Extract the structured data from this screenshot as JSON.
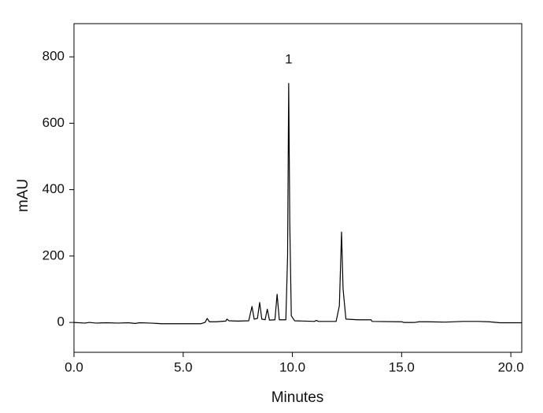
{
  "chart_data": {
    "type": "line",
    "xlabel": "Minutes",
    "ylabel": "mAU",
    "annotation": "1",
    "xlim": [
      0,
      20.5
    ],
    "ylim": [
      -90,
      900
    ],
    "xticks": [
      {
        "value": 0,
        "label": "0.0"
      },
      {
        "value": 5,
        "label": "5.0"
      },
      {
        "value": 10,
        "label": "10.0"
      },
      {
        "value": 15,
        "label": "15.0"
      },
      {
        "value": 20,
        "label": "20.0"
      }
    ],
    "yticks": [
      0,
      200,
      400,
      600,
      800
    ],
    "color": "#000000",
    "x": [
      0.0,
      0.5,
      0.7,
      1.0,
      1.5,
      2.0,
      2.5,
      2.8,
      3.0,
      3.5,
      3.8,
      4.0,
      5.0,
      5.8,
      6.0,
      6.1,
      6.2,
      6.5,
      6.95,
      7.0,
      7.1,
      7.5,
      8.0,
      8.15,
      8.25,
      8.4,
      8.5,
      8.6,
      8.75,
      8.85,
      8.95,
      9.2,
      9.3,
      9.4,
      9.7,
      9.78,
      9.83,
      9.88,
      9.95,
      10.1,
      11.0,
      11.1,
      11.2,
      12.0,
      12.15,
      12.25,
      12.32,
      12.45,
      13.0,
      13.6,
      13.65,
      15.0,
      15.1,
      15.6,
      15.8,
      16.2,
      17.0,
      17.8,
      18.5,
      19.0,
      19.5,
      20.5
    ],
    "values": [
      0,
      -2,
      0,
      -2,
      -1,
      -2,
      -1,
      -3,
      -1,
      -2,
      -3,
      -4,
      -4,
      -4,
      0,
      12,
      2,
      2,
      4,
      10,
      5,
      4,
      5,
      48,
      10,
      12,
      60,
      10,
      8,
      40,
      7,
      8,
      85,
      8,
      8,
      200,
      720,
      300,
      20,
      5,
      3,
      6,
      3,
      3,
      50,
      272,
      100,
      10,
      8,
      8,
      3,
      2,
      0,
      0,
      2,
      2,
      1,
      3,
      3,
      2,
      -1,
      -1
    ]
  }
}
